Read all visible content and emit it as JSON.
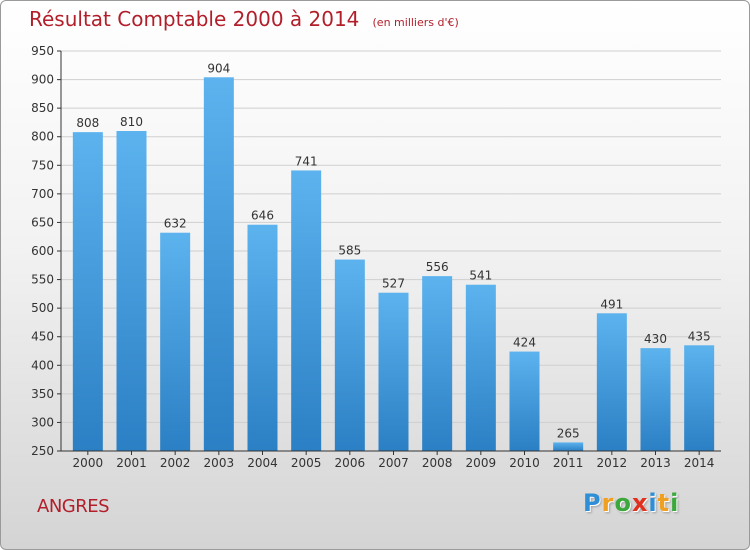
{
  "chart_data": {
    "type": "bar",
    "title": "Résultat Comptable 2000 à 2014",
    "subtitle": "(en milliers d'€)",
    "categories": [
      "2000",
      "2001",
      "2002",
      "2003",
      "2004",
      "2005",
      "2006",
      "2007",
      "2008",
      "2009",
      "2010",
      "2011",
      "2012",
      "2013",
      "2014"
    ],
    "values": [
      808,
      810,
      632,
      904,
      646,
      741,
      585,
      527,
      556,
      541,
      424,
      265,
      491,
      430,
      435
    ],
    "ylim": [
      250,
      950
    ],
    "yticks": [
      250,
      300,
      350,
      400,
      450,
      500,
      550,
      600,
      650,
      700,
      750,
      800,
      850,
      900,
      950
    ],
    "xlabel": "",
    "ylabel": "",
    "grid": true,
    "legend": "none"
  },
  "footer": {
    "commune": "ANGRES",
    "logo_letters": [
      "P",
      "r",
      "o",
      "x",
      "i",
      "t",
      "i"
    ],
    "logo_colors": [
      "#2e8fd6",
      "#f0a020",
      "#3aa83a",
      "#e0301e",
      "#2e8fd6",
      "#f0a020",
      "#3aa83a"
    ]
  },
  "colors": {
    "title": "#b21f2a",
    "bar_top": "#5cb3ee",
    "bar_bottom": "#2b7fc4",
    "grid": "#cfcfcf",
    "axis": "#333333"
  }
}
